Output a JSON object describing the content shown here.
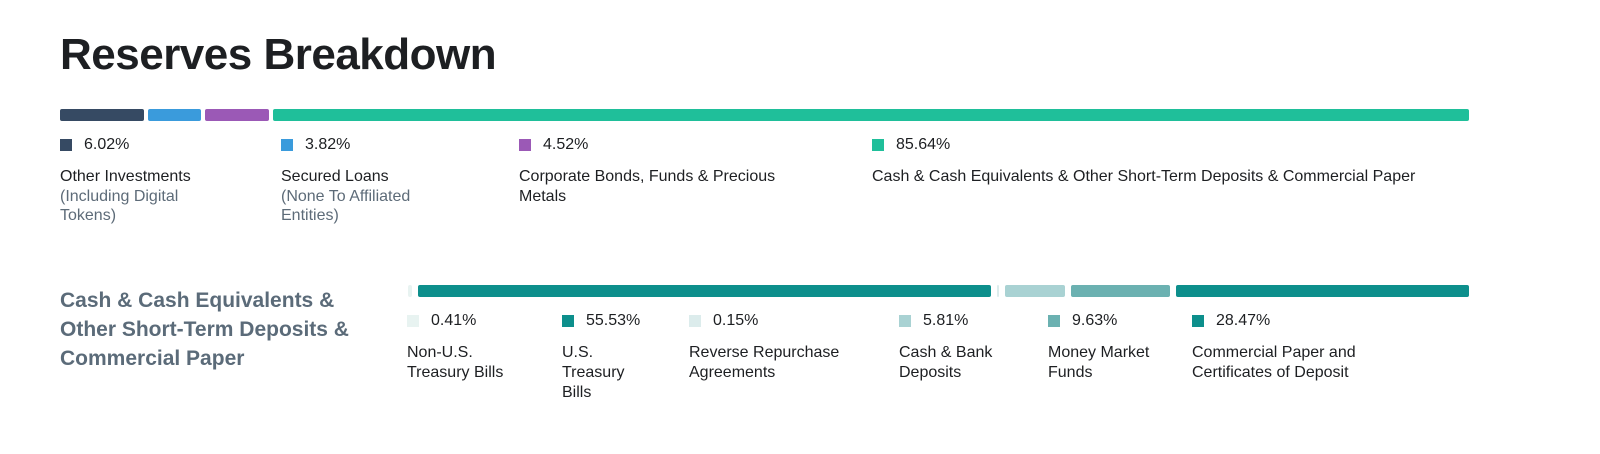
{
  "title": "Reserves Breakdown",
  "chart_data": [
    {
      "type": "bar",
      "stacked": "horizontal-100%",
      "title": "Reserves Breakdown",
      "series": [
        {
          "value": 6.02,
          "display": "6.02%",
          "label": "Other Investments",
          "sublabel": "(Including Digital Tokens)",
          "color": "#364a63"
        },
        {
          "value": 3.82,
          "display": "3.82%",
          "label": "Secured Loans",
          "sublabel": "(None To Affiliated Entities)",
          "color": "#3a9bdc"
        },
        {
          "value": 4.52,
          "display": "4.52%",
          "label": "Corporate Bonds, Funds & Precious Metals",
          "sublabel": "",
          "color": "#9b59b6"
        },
        {
          "value": 85.64,
          "display": "85.64%",
          "label": "Cash & Cash Equivalents & Other Short-Term Deposits & Commercial Paper",
          "sublabel": "",
          "color": "#1fbf9a"
        }
      ]
    },
    {
      "type": "bar",
      "stacked": "horizontal-100%",
      "title": "Cash & Cash Equivalents & Other Short-Term Deposits & Commercial Paper",
      "series": [
        {
          "value": 0.41,
          "display": "0.41%",
          "label": "Non-U.S. Treasury Bills",
          "color": "#e8f3f1"
        },
        {
          "value": 55.53,
          "display": "55.53%",
          "label": "U.S. Treasury Bills",
          "color": "#0d8f8c"
        },
        {
          "value": 0.15,
          "display": "0.15%",
          "label": "Reverse Repurchase Agreements",
          "color": "#dcecec"
        },
        {
          "value": 5.81,
          "display": "5.81%",
          "label": "Cash & Bank Deposits",
          "color": "#a9d2d3"
        },
        {
          "value": 9.63,
          "display": "9.63%",
          "label": "Money Market Funds",
          "color": "#6bb1b1"
        },
        {
          "value": 28.47,
          "display": "28.47%",
          "label": "Commercial Paper and Certificates of Deposit",
          "color": "#0d8f8c"
        }
      ]
    }
  ]
}
